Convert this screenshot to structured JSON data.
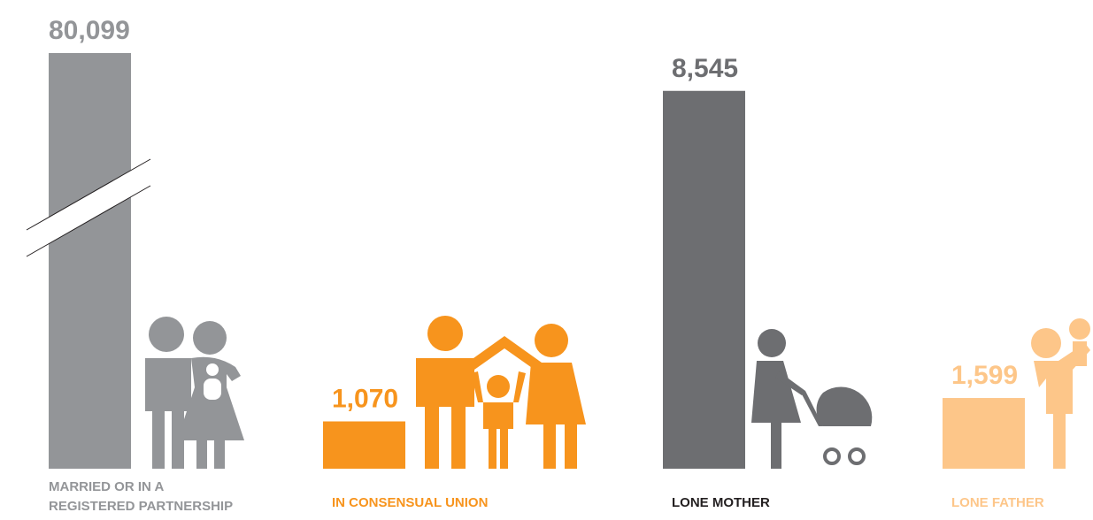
{
  "chart_data": {
    "type": "bar",
    "categories": [
      "MARRIED OR IN A REGISTERED PARTNERSHIP",
      "IN CONSENSUAL UNION",
      "LONE MOTHER",
      "LONE FATHER"
    ],
    "values": [
      80099,
      1070,
      8545,
      1599
    ],
    "value_labels": [
      "80,099",
      "1,070",
      "8,545",
      "1,599"
    ],
    "colors": [
      "#939598",
      "#f7941d",
      "#6d6e71",
      "#fdc689"
    ],
    "label_colors": [
      "#939598",
      "#f7941d",
      "#231f20",
      "#fdc689"
    ],
    "ylim": [
      0,
      9400
    ],
    "axis_break": true
  }
}
